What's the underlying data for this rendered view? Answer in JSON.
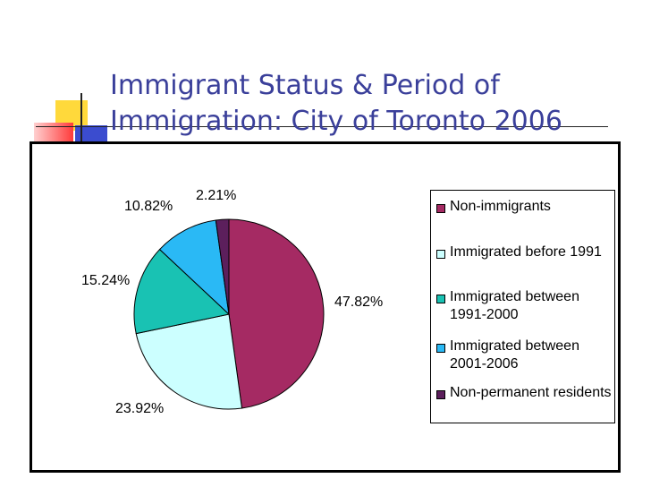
{
  "slide": {
    "title_lines": [
      "Immigrant Status & Period of",
      "Immigration: City of Toronto 2006"
    ],
    "accent_colors": [
      "#ffd23a",
      "#ff4a4a",
      "#3a4ccf"
    ]
  },
  "chart_data": {
    "type": "pie",
    "title": "",
    "slices": [
      {
        "label": "Non-immigrants",
        "value": 47.82,
        "value_label": "47.82%",
        "color": "#a52a63"
      },
      {
        "label": "Immigrated before 1991",
        "value": 23.92,
        "value_label": "23.92%",
        "color": "#ccffff"
      },
      {
        "label": "Immigrated between 1991-2000",
        "value": 15.24,
        "value_label": "15.24%",
        "color": "#19c2b3"
      },
      {
        "label": "Immigrated between 2001-2006",
        "value": 10.82,
        "value_label": "10.82%",
        "color": "#2ab9f5"
      },
      {
        "label": "Non-permanent residents",
        "value": 2.21,
        "value_label": "2.21%",
        "color": "#5c1f5c"
      }
    ],
    "legend_position": "right",
    "start_angle": "12 o'clock",
    "direction": "clockwise"
  }
}
